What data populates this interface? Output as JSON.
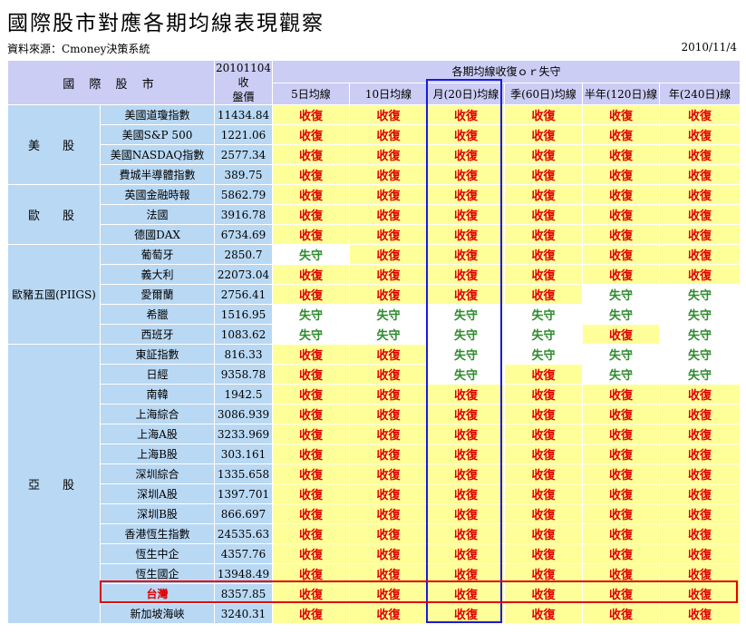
{
  "title": "國際股市對應各期均線表現觀察",
  "source": "資料來源：Cmoney決策系統",
  "date": "2010/11/4",
  "header": {
    "market": "國 際 股 市",
    "price_line1": "20101104收",
    "price_line2": "盤價",
    "group": "各期均線收復ｏｒ失守",
    "periods": [
      "5日均線",
      "10日均線",
      "月(20日)均線",
      "季(60日)均線",
      "半年(120日)線",
      "年(240日)線"
    ]
  },
  "status_labels": {
    "up": "收復",
    "down": "失守"
  },
  "colors": {
    "header_bg": "#cccdf4",
    "label_bg": "#b9d8f3",
    "up_bg": "#ffff99",
    "up_text": "#e00000",
    "down_text": "#2e8b2e",
    "monthly_outline": "#1a1ae0",
    "taiwan_outline": "#e00000"
  },
  "groups": [
    {
      "region": "美　股",
      "rows": [
        {
          "name": "美國道瓊指數",
          "price": "11434.84",
          "status": [
            "up",
            "up",
            "up",
            "up",
            "up",
            "up"
          ]
        },
        {
          "name": "美國S&P 500",
          "price": "1221.06",
          "status": [
            "up",
            "up",
            "up",
            "up",
            "up",
            "up"
          ]
        },
        {
          "name": "美國NASDAQ指數",
          "price": "2577.34",
          "status": [
            "up",
            "up",
            "up",
            "up",
            "up",
            "up"
          ]
        },
        {
          "name": "費城半導體指數",
          "price": "389.75",
          "status": [
            "up",
            "up",
            "up",
            "up",
            "up",
            "up"
          ]
        }
      ]
    },
    {
      "region": "歐　股",
      "rows": [
        {
          "name": "英國金融時報",
          "price": "5862.79",
          "status": [
            "up",
            "up",
            "up",
            "up",
            "up",
            "up"
          ]
        },
        {
          "name": "法國",
          "price": "3916.78",
          "status": [
            "up",
            "up",
            "up",
            "up",
            "up",
            "up"
          ]
        },
        {
          "name": "德國DAX",
          "price": "6734.69",
          "status": [
            "up",
            "up",
            "up",
            "up",
            "up",
            "up"
          ]
        }
      ]
    },
    {
      "region": "歐豬五國(PIIGS)",
      "rows": [
        {
          "name": "葡萄牙",
          "price": "2850.7",
          "status": [
            "down",
            "up",
            "up",
            "up",
            "up",
            "up"
          ]
        },
        {
          "name": "義大利",
          "price": "22073.04",
          "status": [
            "up",
            "up",
            "up",
            "up",
            "up",
            "up"
          ]
        },
        {
          "name": "愛爾蘭",
          "price": "2756.41",
          "status": [
            "up",
            "up",
            "up",
            "up",
            "down",
            "down"
          ]
        },
        {
          "name": "希臘",
          "price": "1516.95",
          "status": [
            "down",
            "down",
            "down",
            "down",
            "down",
            "down"
          ]
        },
        {
          "name": "西班牙",
          "price": "1083.62",
          "status": [
            "down",
            "down",
            "down",
            "down",
            "up",
            "down"
          ]
        }
      ]
    },
    {
      "region": "亞　股",
      "rows": [
        {
          "name": "東証指數",
          "price": "816.33",
          "status": [
            "up",
            "up",
            "down",
            "down",
            "down",
            "down"
          ]
        },
        {
          "name": "日經",
          "price": "9358.78",
          "status": [
            "up",
            "up",
            "down",
            "up",
            "down",
            "down"
          ]
        },
        {
          "name": "南韓",
          "price": "1942.5",
          "status": [
            "up",
            "up",
            "up",
            "up",
            "up",
            "up"
          ]
        },
        {
          "name": "上海綜合",
          "price": "3086.939",
          "status": [
            "up",
            "up",
            "up",
            "up",
            "up",
            "up"
          ]
        },
        {
          "name": "上海A股",
          "price": "3233.969",
          "status": [
            "up",
            "up",
            "up",
            "up",
            "up",
            "up"
          ]
        },
        {
          "name": "上海B股",
          "price": "303.161",
          "status": [
            "up",
            "up",
            "up",
            "up",
            "up",
            "up"
          ]
        },
        {
          "name": "深圳綜合",
          "price": "1335.658",
          "status": [
            "up",
            "up",
            "up",
            "up",
            "up",
            "up"
          ]
        },
        {
          "name": "深圳A股",
          "price": "1397.701",
          "status": [
            "up",
            "up",
            "up",
            "up",
            "up",
            "up"
          ]
        },
        {
          "name": "深圳B股",
          "price": "866.697",
          "status": [
            "up",
            "up",
            "up",
            "up",
            "up",
            "up"
          ]
        },
        {
          "name": "香港恆生指數",
          "price": "24535.63",
          "status": [
            "up",
            "up",
            "up",
            "up",
            "up",
            "up"
          ]
        },
        {
          "name": "恆生中企",
          "price": "4357.76",
          "status": [
            "up",
            "up",
            "up",
            "up",
            "up",
            "up"
          ]
        },
        {
          "name": "恆生國企",
          "price": "13948.49",
          "status": [
            "up",
            "up",
            "up",
            "up",
            "up",
            "up"
          ]
        },
        {
          "name": "台灣",
          "price": "8357.85",
          "status": [
            "up",
            "up",
            "up",
            "up",
            "up",
            "up"
          ],
          "highlight": true
        },
        {
          "name": "新加坡海峽",
          "price": "3240.31",
          "status": [
            "up",
            "up",
            "up",
            "up",
            "up",
            "up"
          ]
        }
      ]
    }
  ]
}
